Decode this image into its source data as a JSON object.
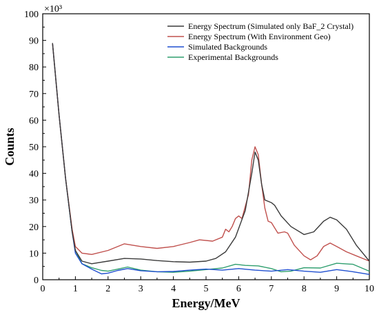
{
  "chart_data": {
    "type": "line",
    "xlabel": "Energy/MeV",
    "ylabel": "Counts",
    "y_multiplier_label": "×10³",
    "xlim": [
      0,
      10
    ],
    "ylim": [
      0,
      100
    ],
    "x_ticks": [
      0,
      1,
      2,
      3,
      4,
      5,
      6,
      7,
      8,
      9,
      10
    ],
    "y_ticks": [
      0,
      10,
      20,
      30,
      40,
      50,
      60,
      70,
      80,
      90,
      100
    ],
    "grid": false,
    "legend_position": "top-right",
    "series": [
      {
        "name": "Energy Spectrum (Simulated only BaF_2 Crystal)",
        "color": "#3a3a3a",
        "points": [
          [
            0.3,
            89
          ],
          [
            0.5,
            62
          ],
          [
            0.7,
            38
          ],
          [
            0.9,
            18
          ],
          [
            1.0,
            11
          ],
          [
            1.2,
            7
          ],
          [
            1.5,
            6
          ],
          [
            2.0,
            7
          ],
          [
            2.5,
            8
          ],
          [
            3.0,
            7.8
          ],
          [
            3.5,
            7.2
          ],
          [
            4.0,
            6.8
          ],
          [
            4.5,
            6.6
          ],
          [
            5.0,
            7
          ],
          [
            5.3,
            8
          ],
          [
            5.6,
            10.5
          ],
          [
            5.9,
            16
          ],
          [
            6.2,
            26
          ],
          [
            6.4,
            40
          ],
          [
            6.5,
            48
          ],
          [
            6.6,
            45
          ],
          [
            6.7,
            36
          ],
          [
            6.8,
            30
          ],
          [
            7.0,
            29
          ],
          [
            7.1,
            28
          ],
          [
            7.3,
            24
          ],
          [
            7.6,
            20
          ],
          [
            8.0,
            17
          ],
          [
            8.3,
            18
          ],
          [
            8.6,
            22
          ],
          [
            8.8,
            23.5
          ],
          [
            9.0,
            22.5
          ],
          [
            9.3,
            19
          ],
          [
            9.6,
            13
          ],
          [
            10.0,
            7
          ]
        ]
      },
      {
        "name": "Energy Spectrum (With Environment Geo)",
        "color": "#c0504d",
        "points": [
          [
            0.3,
            89
          ],
          [
            0.5,
            62
          ],
          [
            0.7,
            38
          ],
          [
            0.9,
            19
          ],
          [
            1.0,
            12.5
          ],
          [
            1.2,
            10
          ],
          [
            1.5,
            9.5
          ],
          [
            2.0,
            11
          ],
          [
            2.5,
            13.5
          ],
          [
            3.0,
            12.5
          ],
          [
            3.5,
            11.8
          ],
          [
            4.0,
            12.5
          ],
          [
            4.5,
            14
          ],
          [
            4.8,
            15
          ],
          [
            5.2,
            14.5
          ],
          [
            5.5,
            16
          ],
          [
            5.6,
            19
          ],
          [
            5.7,
            18
          ],
          [
            5.8,
            20
          ],
          [
            5.9,
            23
          ],
          [
            6.0,
            24
          ],
          [
            6.1,
            23
          ],
          [
            6.3,
            32
          ],
          [
            6.4,
            45
          ],
          [
            6.5,
            50
          ],
          [
            6.6,
            47
          ],
          [
            6.7,
            36
          ],
          [
            6.8,
            27
          ],
          [
            6.9,
            22
          ],
          [
            7.0,
            21.5
          ],
          [
            7.2,
            17.5
          ],
          [
            7.4,
            18
          ],
          [
            7.5,
            17.5
          ],
          [
            7.7,
            13
          ],
          [
            8.0,
            9
          ],
          [
            8.2,
            7.5
          ],
          [
            8.4,
            9
          ],
          [
            8.6,
            12.5
          ],
          [
            8.8,
            13.8
          ],
          [
            9.0,
            12.5
          ],
          [
            9.3,
            10.5
          ],
          [
            9.6,
            9
          ],
          [
            10.0,
            7
          ]
        ]
      },
      {
        "name": "Simulated Backgrounds",
        "color": "#1f4fd0",
        "points": [
          [
            0.3,
            89
          ],
          [
            0.5,
            62
          ],
          [
            0.7,
            38
          ],
          [
            0.9,
            18
          ],
          [
            1.0,
            10
          ],
          [
            1.2,
            6
          ],
          [
            1.5,
            4
          ],
          [
            1.8,
            2.2
          ],
          [
            2.0,
            2.5
          ],
          [
            2.3,
            3.5
          ],
          [
            2.6,
            4.2
          ],
          [
            3.0,
            3.4
          ],
          [
            3.5,
            3.0
          ],
          [
            4.0,
            3.1
          ],
          [
            4.5,
            3.6
          ],
          [
            5.0,
            4.0
          ],
          [
            5.5,
            3.6
          ],
          [
            6.0,
            4.2
          ],
          [
            6.5,
            3.6
          ],
          [
            7.0,
            3.2
          ],
          [
            7.5,
            3.8
          ],
          [
            8.0,
            3.2
          ],
          [
            8.5,
            2.8
          ],
          [
            9.0,
            3.8
          ],
          [
            9.5,
            3.0
          ],
          [
            10.0,
            2.0
          ]
        ]
      },
      {
        "name": "Experimental Backgrounds",
        "color": "#2e9e6e",
        "points": [
          [
            0.3,
            89
          ],
          [
            0.5,
            62
          ],
          [
            0.7,
            38
          ],
          [
            0.9,
            18
          ],
          [
            1.0,
            11
          ],
          [
            1.2,
            6
          ],
          [
            1.5,
            4.5
          ],
          [
            1.8,
            3.5
          ],
          [
            2.0,
            3.2
          ],
          [
            2.3,
            4.0
          ],
          [
            2.6,
            4.8
          ],
          [
            3.0,
            3.6
          ],
          [
            3.5,
            3.0
          ],
          [
            4.0,
            2.8
          ],
          [
            4.5,
            3.2
          ],
          [
            5.0,
            3.8
          ],
          [
            5.5,
            4.4
          ],
          [
            5.9,
            5.8
          ],
          [
            6.2,
            5.4
          ],
          [
            6.6,
            5.2
          ],
          [
            7.0,
            4.2
          ],
          [
            7.3,
            3.0
          ],
          [
            7.6,
            3.2
          ],
          [
            8.0,
            4.5
          ],
          [
            8.5,
            4.4
          ],
          [
            9.0,
            6.2
          ],
          [
            9.5,
            5.8
          ],
          [
            10.0,
            3.2
          ]
        ]
      }
    ]
  }
}
